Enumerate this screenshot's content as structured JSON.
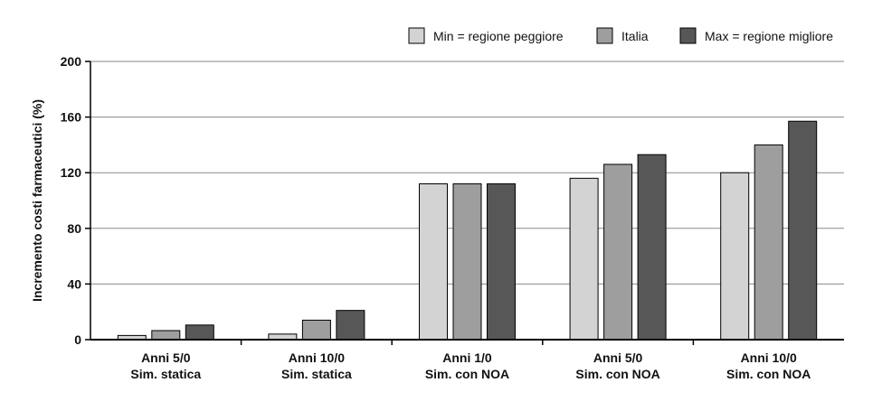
{
  "chart_data": {
    "type": "bar",
    "title": "",
    "xlabel": "",
    "ylabel": "Incremento costi farmaceutici (%)",
    "ylim": [
      0,
      200
    ],
    "yticks": [
      0,
      40,
      80,
      120,
      160,
      200
    ],
    "grid": true,
    "legend_position": "top-right",
    "categories": [
      [
        "Anni 5/0",
        "Sim. statica"
      ],
      [
        "Anni 10/0",
        "Sim. statica"
      ],
      [
        "Anni 1/0",
        "Sim. con NOA"
      ],
      [
        "Anni 5/0",
        "Sim. con NOA"
      ],
      [
        "Anni 10/0",
        "Sim. con NOA"
      ]
    ],
    "series": [
      {
        "name": "Min = regione peggiore",
        "color": "#d3d3d3",
        "values": [
          3,
          4,
          112,
          116,
          120
        ]
      },
      {
        "name": "Italia",
        "color": "#9e9e9e",
        "values": [
          6.5,
          14,
          112,
          126,
          140
        ]
      },
      {
        "name": "Max = regione migliore",
        "color": "#575757",
        "values": [
          10.5,
          21,
          112,
          133,
          157
        ]
      }
    ]
  }
}
